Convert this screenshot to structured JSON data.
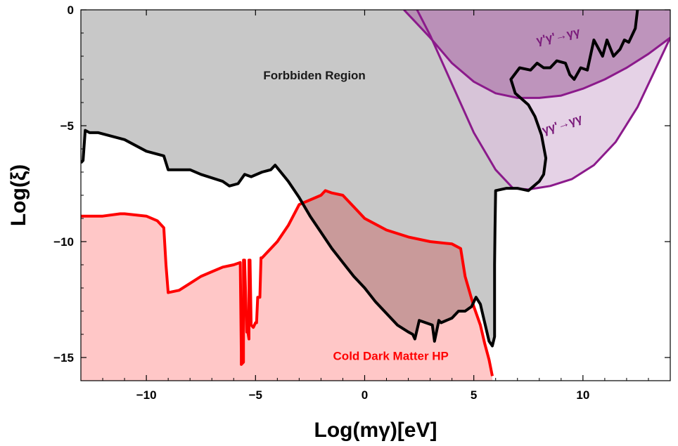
{
  "chart_data": {
    "type": "area",
    "xlabel": "Log(mγ)[eV]",
    "ylabel": "Log(ξ)",
    "xlim": [
      -13,
      14
    ],
    "ylim": [
      -16,
      0
    ],
    "xticks": [
      -10,
      -5,
      0,
      5,
      10
    ],
    "yticks": [
      0,
      -5,
      -10,
      -15
    ],
    "xtick_labels": [
      "−10",
      "−5",
      "0",
      "5",
      "10"
    ],
    "ytick_labels": [
      "0",
      "−5",
      "−10",
      "−15"
    ],
    "grid": false,
    "legend": "none",
    "annotations": [
      {
        "text": "Forbbiden Region",
        "x": -2.3,
        "y": -3.0,
        "color": "#1a1a1a",
        "rotate": 0
      },
      {
        "text": "Cold Dark Matter HP",
        "x": 1.2,
        "y": -15.1,
        "color": "#ff0000",
        "rotate": 0
      },
      {
        "text": "γ'γ'→γγ",
        "x": 8.9,
        "y": -1.3,
        "color": "#7a1a7a",
        "rotate": -12
      },
      {
        "text": "γγ'→γγ",
        "x": 9.1,
        "y": -5.1,
        "color": "#7a1a7a",
        "rotate": -18
      }
    ],
    "colors": {
      "forbidden_fill": "#c8c8c8",
      "forbidden_line": "#000000",
      "cdm_fill": "#ffc7c7",
      "cdm_line": "#ff0000",
      "purple_line": "#8b1a8b",
      "purple_light_fill": "#dcc3de",
      "purple_dark_fill": "#b07fae"
    },
    "series": [
      {
        "x": [
          -13,
          -12.9,
          -12.8,
          -12.6,
          -12.2,
          -11,
          -10,
          -9.2,
          -9,
          -8,
          -7.5,
          -6.5,
          -6.2,
          -5.8,
          -5.5,
          -5.2,
          -4.7,
          -4.3,
          -4.1,
          -3.5,
          -3,
          -2.5,
          -2,
          -1.5,
          -1,
          -0.5,
          0,
          0.5,
          1,
          1.5,
          2,
          2.2,
          2.3,
          2.5,
          2.8,
          3.1,
          3.2,
          3.4,
          3.5,
          4,
          4.3,
          4.6,
          4.9,
          5.1,
          5.3,
          5.5,
          5.7,
          5.85,
          5.95,
          5.95,
          5.97,
          6,
          6.5,
          7,
          7.5,
          8,
          8.2,
          8.3,
          8.1,
          7.8,
          7.5,
          6.9,
          6.7,
          7.1,
          7.6,
          7.9,
          8.2,
          8.5,
          8.8,
          9.2,
          9.4,
          9.6,
          9.9,
          10.2,
          10.5,
          10.9,
          11.1,
          11.4,
          11.7,
          11.9,
          12.1,
          12.3,
          12.4,
          12.5
        ],
        "y": [
          -6.6,
          -6.5,
          -5.2,
          -5.3,
          -5.3,
          -5.6,
          -6.1,
          -6.3,
          -6.9,
          -6.9,
          -7.1,
          -7.4,
          -7.6,
          -7.5,
          -7.1,
          -7.2,
          -7.0,
          -6.9,
          -6.7,
          -7.4,
          -8.1,
          -8.9,
          -9.6,
          -10.3,
          -10.9,
          -11.5,
          -12.0,
          -12.6,
          -13.1,
          -13.6,
          -13.9,
          -14.0,
          -14.2,
          -13.4,
          -13.5,
          -13.6,
          -14.3,
          -13.4,
          -13.5,
          -13.3,
          -13.0,
          -13.0,
          -12.8,
          -12.4,
          -12.7,
          -13.5,
          -14.3,
          -14.5,
          -14.1,
          -11.0,
          -9.5,
          -7.8,
          -7.7,
          -7.7,
          -7.8,
          -7.4,
          -7.1,
          -6.4,
          -5.4,
          -4.6,
          -4.1,
          -3.6,
          -3.0,
          -2.5,
          -2.6,
          -2.3,
          -2.5,
          -2.5,
          -2.2,
          -2.3,
          -2.8,
          -3.0,
          -2.5,
          -2.6,
          -1.3,
          -2.0,
          -1.3,
          -2.0,
          -1.7,
          -1.3,
          -1.4,
          -1.0,
          -0.8,
          0
        ]
      },
      {
        "x": [
          -13,
          -12,
          -11.2,
          -11,
          -10,
          -9.5,
          -9.2,
          -9.1,
          -9,
          -8.5,
          -8,
          -7.5,
          -7,
          -6.5,
          -6,
          -5.7,
          -5.65,
          -5.65,
          -5.55,
          -5.55,
          -5.5,
          -5.4,
          -5.35,
          -5.3,
          -5.3,
          -5.25,
          -5.2,
          -5.1,
          -5.0,
          -4.95,
          -4.9,
          -4.8,
          -4.75,
          -4.7,
          -4.5,
          -4,
          -3.5,
          -3,
          -2.5,
          -2,
          -1.8,
          -1.5,
          -1,
          -0.5,
          0,
          1,
          2,
          3,
          4,
          4.4,
          4.6,
          5,
          5.3,
          5.5,
          5.7,
          5.85
        ],
        "y": [
          -8.9,
          -8.9,
          -8.8,
          -8.8,
          -8.9,
          -9.1,
          -9.4,
          -11.0,
          -12.2,
          -12.1,
          -11.8,
          -11.5,
          -11.3,
          -11.1,
          -11.0,
          -10.9,
          -14.8,
          -15.3,
          -15.2,
          -10.8,
          -10.8,
          -13.9,
          -13.9,
          -14.2,
          -10.8,
          -10.8,
          -13.6,
          -13.7,
          -13.5,
          -13.5,
          -12.4,
          -12.4,
          -10.7,
          -10.7,
          -10.5,
          -10.0,
          -9.3,
          -8.4,
          -8.2,
          -8.0,
          -7.8,
          -7.9,
          -8.0,
          -8.5,
          -9.0,
          -9.5,
          -9.8,
          -10.0,
          -10.1,
          -10.3,
          -11.5,
          -12.8,
          -13.6,
          -14.4,
          -15.1,
          -15.8
        ]
      },
      {
        "x": [
          1.8,
          2.2,
          3.0,
          4.0,
          5.0,
          6.0,
          7.0,
          8.0,
          9.0,
          10.0,
          11.0,
          12.0,
          13.0,
          14.0
        ],
        "y": [
          0.0,
          -0.4,
          -1.2,
          -2.3,
          -3.1,
          -3.6,
          -3.8,
          -3.8,
          -3.7,
          -3.4,
          -3.0,
          -2.5,
          -1.9,
          -1.2
        ]
      },
      {
        "x": [
          2.4,
          3.0,
          4.0,
          5.0,
          6.0,
          6.8,
          7.5,
          8.5,
          9.5,
          10.5,
          11.5,
          12.5,
          13.3,
          14.0
        ],
        "y": [
          0.0,
          -1.1,
          -3.2,
          -5.3,
          -6.9,
          -7.7,
          -7.75,
          -7.6,
          -7.3,
          -6.7,
          -5.7,
          -4.2,
          -2.6,
          -1.2
        ]
      }
    ]
  }
}
